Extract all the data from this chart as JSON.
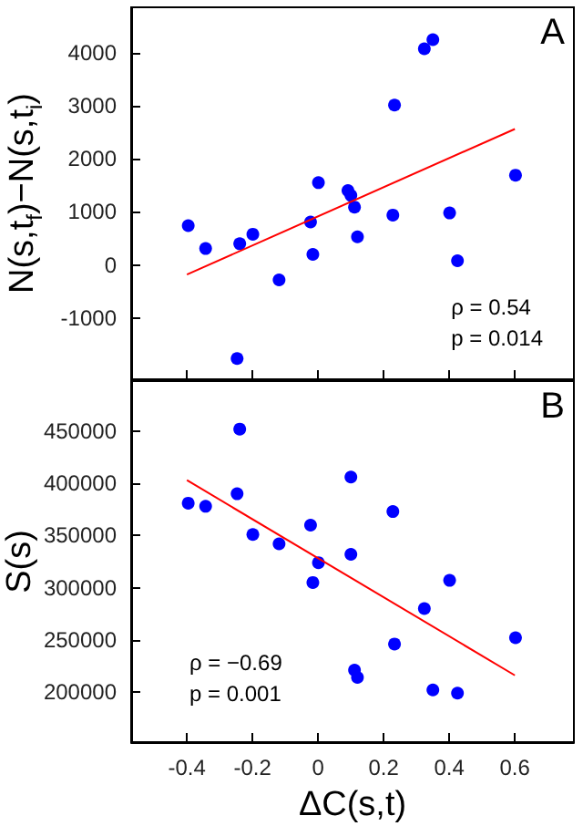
{
  "chart_data": [
    {
      "type": "scatter",
      "ylabel": "N(s,t$_{f}$)−N(s,t$_{i}$)",
      "xlim": [
        -0.57,
        0.78
      ],
      "ylim": [
        -2150,
        4850
      ],
      "xticks": [
        -0.4,
        -0.2,
        0,
        0.2,
        0.4,
        0.6
      ],
      "yticks": [
        -1000,
        0,
        1000,
        2000,
        3000,
        4000
      ],
      "tick_labels": "y",
      "grid": false,
      "marker": "circle",
      "annotations": [
        "A",
        "ρ = 0.54",
        "p = 0.014"
      ],
      "series": [
        {
          "color": "#0000ff",
          "x": [
            -0.396,
            -0.343,
            -0.239,
            -0.199,
            -0.247,
            -0.119,
            -0.023,
            -0.016,
            0.001,
            0.091,
            0.1,
            0.111,
            0.12,
            0.228,
            0.233,
            0.324,
            0.35,
            0.401,
            0.425,
            0.602
          ],
          "values": [
            740,
            310,
            400,
            580,
            -1760,
            -280,
            810,
            200,
            1550,
            1400,
            1310,
            1090,
            530,
            940,
            3010,
            4070,
            4240,
            980,
            80,
            1690
          ]
        },
        {
          "type": "line",
          "color": "#ff0000",
          "marker": "none",
          "x": [
            -0.4,
            0.6
          ],
          "values": [
            -180,
            2560
          ]
        }
      ]
    },
    {
      "type": "scatter",
      "xlabel": "ΔC(s,t)",
      "ylabel": "S(s)",
      "xlim": [
        -0.57,
        0.78
      ],
      "ylim": [
        152000,
        498000
      ],
      "xticks": [
        -0.4,
        -0.2,
        0,
        0.2,
        0.4,
        0.6
      ],
      "yticks": [
        200000,
        250000,
        300000,
        350000,
        400000,
        450000
      ],
      "grid": false,
      "marker": "circle",
      "annotations": [
        "B",
        "ρ = −0.69",
        "p = 0.001"
      ],
      "series": [
        {
          "color": "#0000ff",
          "x": [
            -0.396,
            -0.343,
            -0.247,
            -0.239,
            -0.199,
            -0.119,
            -0.023,
            -0.016,
            0.001,
            0.1,
            0.1,
            0.111,
            0.12,
            0.228,
            0.233,
            0.324,
            0.35,
            0.401,
            0.425,
            0.602
          ],
          "values": [
            381000,
            378000,
            390000,
            452000,
            351000,
            342000,
            360000,
            305000,
            324000,
            332000,
            406000,
            221000,
            214000,
            373000,
            246000,
            280000,
            202000,
            307000,
            199000,
            252000
          ]
        },
        {
          "type": "line",
          "color": "#ff0000",
          "marker": "none",
          "x": [
            -0.4,
            0.6
          ],
          "values": [
            403000,
            216000
          ]
        }
      ]
    }
  ]
}
